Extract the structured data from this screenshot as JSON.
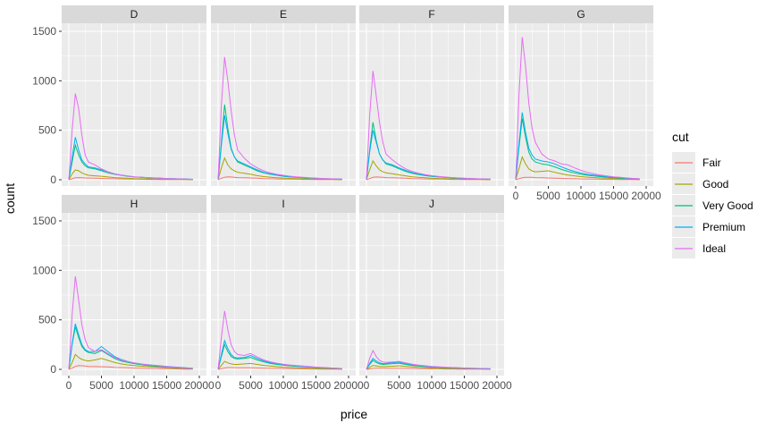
{
  "chart_data": {
    "type": "line",
    "facets": [
      "D",
      "E",
      "F",
      "G",
      "H",
      "I",
      "J"
    ],
    "xlabel": "price",
    "ylabel": "count",
    "xlim": [
      0,
      20000
    ],
    "ylim": [
      0,
      1500
    ],
    "x_ticks": [
      0,
      5000,
      10000,
      15000,
      20000
    ],
    "y_ticks": [
      0,
      500,
      1000,
      1500
    ],
    "x_tick_labels": [
      "0",
      "5000",
      "10000",
      "15000",
      "20000"
    ],
    "y_tick_labels": [
      "0",
      "500",
      "1000",
      "1500"
    ],
    "grid": true,
    "legend": {
      "title": "cut",
      "position": "right",
      "entries": [
        "Fair",
        "Good",
        "Very Good",
        "Premium",
        "Ideal"
      ]
    },
    "colors": {
      "Fair": "#F8766D",
      "Good": "#A3A500",
      "Very Good": "#00BF7D",
      "Premium": "#00B0F6",
      "Ideal": "#E76BF3",
      "panel": "#EBEBEB",
      "strip": "#D9D9D9",
      "grid": "#FFFFFF"
    },
    "x": [
      0,
      500,
      1000,
      1500,
      2000,
      2500,
      3000,
      4000,
      5000,
      6000,
      7000,
      8000,
      9000,
      10000,
      11000,
      12000,
      13000,
      14000,
      15000,
      16000,
      17000,
      18000,
      19000
    ],
    "panels": [
      {
        "facet": "D",
        "series": [
          {
            "name": "Fair",
            "values": [
              0,
              10,
              20,
              22,
              20,
              18,
              17,
              15,
              14,
              12,
              10,
              8,
              7,
              6,
              5,
              4,
              4,
              3,
              3,
              3,
              2,
              2,
              1
            ]
          },
          {
            "name": "Good",
            "values": [
              0,
              60,
              100,
              90,
              70,
              55,
              45,
              40,
              35,
              28,
              22,
              18,
              15,
              12,
              10,
              9,
              8,
              7,
              6,
              5,
              5,
              4,
              3
            ]
          },
          {
            "name": "Very Good",
            "values": [
              0,
              180,
              350,
              250,
              180,
              140,
              120,
              110,
              90,
              70,
              55,
              45,
              35,
              28,
              24,
              20,
              17,
              15,
              12,
              10,
              8,
              6,
              4
            ]
          },
          {
            "name": "Premium",
            "values": [
              0,
              230,
              430,
              300,
              200,
              160,
              130,
              120,
              100,
              80,
              60,
              48,
              38,
              30,
              26,
              22,
              19,
              16,
              13,
              11,
              9,
              7,
              5
            ]
          },
          {
            "name": "Ideal",
            "values": [
              0,
              500,
              870,
              720,
              450,
              250,
              180,
              150,
              110,
              80,
              60,
              48,
              38,
              30,
              26,
              22,
              18,
              15,
              12,
              10,
              8,
              6,
              4
            ]
          }
        ]
      },
      {
        "facet": "E",
        "series": [
          {
            "name": "Fair",
            "values": [
              0,
              15,
              25,
              30,
              28,
              25,
              22,
              20,
              18,
              15,
              12,
              10,
              8,
              7,
              6,
              5,
              4,
              4,
              3,
              3,
              2,
              2,
              1
            ]
          },
          {
            "name": "Good",
            "values": [
              0,
              120,
              220,
              150,
              110,
              90,
              75,
              65,
              55,
              42,
              32,
              26,
              20,
              17,
              14,
              12,
              10,
              8,
              7,
              6,
              5,
              4,
              3
            ]
          },
          {
            "name": "Very Good",
            "values": [
              0,
              380,
              760,
              520,
              320,
              230,
              180,
              150,
              120,
              90,
              70,
              55,
              45,
              35,
              28,
              24,
              20,
              17,
              14,
              11,
              9,
              7,
              5
            ]
          },
          {
            "name": "Premium",
            "values": [
              0,
              350,
              650,
              470,
              310,
              230,
              190,
              160,
              130,
              100,
              75,
              60,
              48,
              38,
              30,
              26,
              22,
              18,
              15,
              12,
              10,
              8,
              6
            ]
          },
          {
            "name": "Ideal",
            "values": [
              0,
              750,
              1240,
              1000,
              700,
              450,
              300,
              220,
              160,
              120,
              90,
              70,
              55,
              45,
              36,
              30,
              25,
              20,
              16,
              13,
              10,
              8,
              6
            ]
          }
        ]
      },
      {
        "facet": "F",
        "series": [
          {
            "name": "Fair",
            "values": [
              0,
              12,
              25,
              28,
              27,
              25,
              22,
              20,
              18,
              15,
              12,
              10,
              8,
              7,
              6,
              5,
              4,
              4,
              3,
              3,
              2,
              2,
              1
            ]
          },
          {
            "name": "Good",
            "values": [
              0,
              100,
              190,
              140,
              100,
              80,
              70,
              60,
              50,
              40,
              30,
              24,
              20,
              16,
              13,
              11,
              9,
              8,
              7,
              6,
              5,
              4,
              3
            ]
          },
          {
            "name": "Very Good",
            "values": [
              0,
              300,
              580,
              400,
              260,
              200,
              160,
              140,
              110,
              85,
              65,
              52,
              42,
              34,
              28,
              24,
              20,
              17,
              14,
              11,
              9,
              7,
              5
            ]
          },
          {
            "name": "Premium",
            "values": [
              0,
              280,
              500,
              380,
              260,
              200,
              170,
              150,
              120,
              95,
              72,
              58,
              46,
              37,
              30,
              25,
              21,
              17,
              14,
              11,
              9,
              7,
              5
            ]
          },
          {
            "name": "Ideal",
            "values": [
              0,
              650,
              1100,
              850,
              580,
              380,
              260,
              200,
              150,
              110,
              85,
              66,
              52,
              42,
              34,
              28,
              23,
              19,
              15,
              12,
              10,
              8,
              6
            ]
          }
        ]
      },
      {
        "facet": "G",
        "series": [
          {
            "name": "Fair",
            "values": [
              0,
              10,
              20,
              25,
              25,
              24,
              22,
              20,
              18,
              16,
              14,
              12,
              10,
              8,
              7,
              6,
              5,
              4,
              4,
              3,
              3,
              2,
              1
            ]
          },
          {
            "name": "Good",
            "values": [
              0,
              110,
              230,
              160,
              110,
              90,
              80,
              85,
              90,
              75,
              60,
              48,
              40,
              32,
              26,
              22,
              18,
              15,
              12,
              10,
              8,
              6,
              4
            ]
          },
          {
            "name": "Very Good",
            "values": [
              0,
              320,
              620,
              430,
              280,
              210,
              180,
              160,
              150,
              130,
              105,
              85,
              70,
              55,
              45,
              38,
              32,
              26,
              21,
              17,
              14,
              11,
              8
            ]
          },
          {
            "name": "Premium",
            "values": [
              0,
              360,
              680,
              480,
              320,
              250,
              210,
              190,
              180,
              160,
              130,
              105,
              85,
              68,
              55,
              46,
              38,
              31,
              25,
              20,
              16,
              12,
              9
            ]
          },
          {
            "name": "Ideal",
            "values": [
              0,
              850,
              1440,
              1150,
              780,
              520,
              380,
              260,
              210,
              190,
              160,
              150,
              120,
              95,
              75,
              60,
              48,
              38,
              30,
              24,
              18,
              14,
              10
            ]
          }
        ]
      },
      {
        "facet": "H",
        "series": [
          {
            "name": "Fair",
            "values": [
              0,
              12,
              30,
              38,
              36,
              33,
              30,
              28,
              26,
              24,
              20,
              18,
              15,
              13,
              11,
              9,
              8,
              7,
              6,
              5,
              4,
              3,
              2
            ]
          },
          {
            "name": "Good",
            "values": [
              0,
              70,
              150,
              120,
              100,
              90,
              85,
              95,
              110,
              90,
              70,
              55,
              45,
              38,
              32,
              28,
              24,
              20,
              17,
              14,
              11,
              8,
              6
            ]
          },
          {
            "name": "Very Good",
            "values": [
              0,
              250,
              430,
              320,
              230,
              190,
              170,
              160,
              190,
              150,
              110,
              85,
              70,
              58,
              48,
              40,
              34,
              28,
              23,
              19,
              15,
              12,
              9
            ]
          },
          {
            "name": "Premium",
            "values": [
              0,
              260,
              460,
              350,
              250,
              200,
              180,
              180,
              230,
              180,
              130,
              100,
              80,
              65,
              55,
              48,
              42,
              36,
              30,
              25,
              20,
              15,
              11
            ]
          },
          {
            "name": "Ideal",
            "values": [
              0,
              550,
              940,
              700,
              450,
              300,
              220,
              180,
              200,
              160,
              120,
              95,
              78,
              64,
              54,
              46,
              40,
              34,
              28,
              23,
              18,
              14,
              10
            ]
          }
        ]
      },
      {
        "facet": "I",
        "series": [
          {
            "name": "Fair",
            "values": [
              0,
              6,
              14,
              18,
              18,
              17,
              16,
              15,
              16,
              14,
              12,
              10,
              9,
              8,
              7,
              6,
              5,
              4,
              4,
              3,
              3,
              2,
              1
            ]
          },
          {
            "name": "Good",
            "values": [
              0,
              40,
              80,
              65,
              55,
              50,
              50,
              55,
              60,
              50,
              40,
              33,
              27,
              22,
              19,
              16,
              14,
              12,
              10,
              8,
              6,
              5,
              3
            ]
          },
          {
            "name": "Very Good",
            "values": [
              0,
              130,
              250,
              180,
              130,
              110,
              105,
              110,
              120,
              95,
              75,
              60,
              50,
              42,
              36,
              31,
              27,
              23,
              19,
              16,
              13,
              10,
              7
            ]
          },
          {
            "name": "Premium",
            "values": [
              0,
              150,
              290,
              210,
              150,
              120,
              115,
              120,
              140,
              110,
              85,
              68,
              56,
              47,
              40,
              35,
              30,
              25,
              21,
              17,
              14,
              11,
              8
            ]
          },
          {
            "name": "Ideal",
            "values": [
              0,
              320,
              590,
              400,
              250,
              180,
              150,
              140,
              160,
              125,
              95,
              76,
              62,
              52,
              44,
              38,
              33,
              28,
              23,
              19,
              15,
              12,
              9
            ]
          }
        ]
      },
      {
        "facet": "J",
        "series": [
          {
            "name": "Fair",
            "values": [
              0,
              4,
              9,
              11,
              11,
              11,
              10,
              10,
              10,
              9,
              8,
              7,
              6,
              5,
              5,
              4,
              4,
              3,
              3,
              2,
              2,
              2,
              1
            ]
          },
          {
            "name": "Good",
            "values": [
              0,
              20,
              40,
              35,
              30,
              28,
              28,
              32,
              36,
              30,
              24,
              20,
              17,
              14,
              12,
              10,
              9,
              8,
              7,
              6,
              5,
              4,
              3
            ]
          },
          {
            "name": "Very Good",
            "values": [
              0,
              50,
              90,
              70,
              55,
              50,
              52,
              58,
              62,
              50,
              40,
              33,
              28,
              23,
              20,
              17,
              15,
              13,
              11,
              9,
              7,
              6,
              4
            ]
          },
          {
            "name": "Premium",
            "values": [
              0,
              60,
              110,
              85,
              65,
              58,
              60,
              68,
              72,
              58,
              46,
              38,
              32,
              27,
              23,
              20,
              17,
              15,
              13,
              11,
              9,
              7,
              5
            ]
          },
          {
            "name": "Ideal",
            "values": [
              0,
              110,
              190,
              130,
              90,
              75,
              70,
              75,
              80,
              65,
              52,
              43,
              36,
              30,
              26,
              22,
              19,
              16,
              14,
              12,
              10,
              8,
              6
            ]
          }
        ]
      }
    ]
  }
}
